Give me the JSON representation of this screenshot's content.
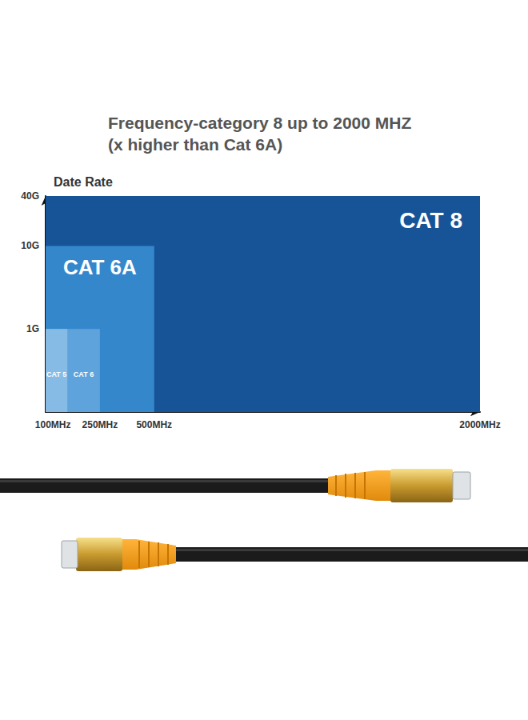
{
  "chart_data": {
    "type": "bar",
    "title": "Frequency-category 8 up to 2000 MHZ",
    "subtitle": "(x higher than Cat 6A)",
    "y_label": "Date Rate",
    "categories": [
      "CAT 5",
      "CAT 6",
      "CAT 6A",
      "CAT 8"
    ],
    "x": [
      100,
      250,
      500,
      2000
    ],
    "values": [
      1,
      1,
      10,
      40
    ],
    "colors": [
      "#86bbe6",
      "#5ea3dc",
      "#3587cc",
      "#175497"
    ],
    "xlim": [
      0,
      2000
    ],
    "xticks": [
      {
        "value": 100,
        "label": "100MHz"
      },
      {
        "value": 250,
        "label": "250MHz"
      },
      {
        "value": 500,
        "label": "500MHz"
      },
      {
        "value": 2000,
        "label": "2000MHz"
      }
    ],
    "ylim": [
      0.1,
      40
    ],
    "yticks": [
      {
        "value": 1,
        "label": "1G"
      },
      {
        "value": 10,
        "label": "10G"
      },
      {
        "value": 40,
        "label": "40G"
      }
    ],
    "log": "y",
    "grid": false
  }
}
